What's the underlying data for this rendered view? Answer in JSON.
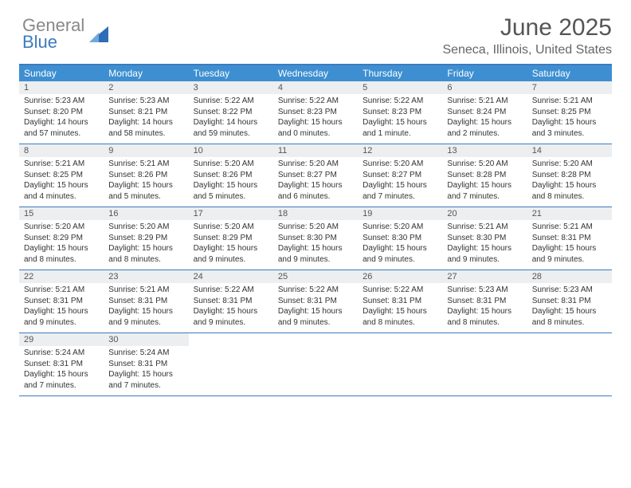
{
  "logo": {
    "text_gray": "General",
    "text_blue": "Blue",
    "shape_color": "#2d6db8"
  },
  "header": {
    "title": "June 2025",
    "subtitle": "Seneca, Illinois, United States"
  },
  "colors": {
    "header_bg": "#3d8fd1",
    "border": "#3d7bbf",
    "daynum_bg": "#eceef0",
    "text": "#333333"
  },
  "weekdays": [
    "Sunday",
    "Monday",
    "Tuesday",
    "Wednesday",
    "Thursday",
    "Friday",
    "Saturday"
  ],
  "weeks": [
    [
      {
        "n": "1",
        "sr": "Sunrise: 5:23 AM",
        "ss": "Sunset: 8:20 PM",
        "dl": "Daylight: 14 hours and 57 minutes."
      },
      {
        "n": "2",
        "sr": "Sunrise: 5:23 AM",
        "ss": "Sunset: 8:21 PM",
        "dl": "Daylight: 14 hours and 58 minutes."
      },
      {
        "n": "3",
        "sr": "Sunrise: 5:22 AM",
        "ss": "Sunset: 8:22 PM",
        "dl": "Daylight: 14 hours and 59 minutes."
      },
      {
        "n": "4",
        "sr": "Sunrise: 5:22 AM",
        "ss": "Sunset: 8:23 PM",
        "dl": "Daylight: 15 hours and 0 minutes."
      },
      {
        "n": "5",
        "sr": "Sunrise: 5:22 AM",
        "ss": "Sunset: 8:23 PM",
        "dl": "Daylight: 15 hours and 1 minute."
      },
      {
        "n": "6",
        "sr": "Sunrise: 5:21 AM",
        "ss": "Sunset: 8:24 PM",
        "dl": "Daylight: 15 hours and 2 minutes."
      },
      {
        "n": "7",
        "sr": "Sunrise: 5:21 AM",
        "ss": "Sunset: 8:25 PM",
        "dl": "Daylight: 15 hours and 3 minutes."
      }
    ],
    [
      {
        "n": "8",
        "sr": "Sunrise: 5:21 AM",
        "ss": "Sunset: 8:25 PM",
        "dl": "Daylight: 15 hours and 4 minutes."
      },
      {
        "n": "9",
        "sr": "Sunrise: 5:21 AM",
        "ss": "Sunset: 8:26 PM",
        "dl": "Daylight: 15 hours and 5 minutes."
      },
      {
        "n": "10",
        "sr": "Sunrise: 5:20 AM",
        "ss": "Sunset: 8:26 PM",
        "dl": "Daylight: 15 hours and 5 minutes."
      },
      {
        "n": "11",
        "sr": "Sunrise: 5:20 AM",
        "ss": "Sunset: 8:27 PM",
        "dl": "Daylight: 15 hours and 6 minutes."
      },
      {
        "n": "12",
        "sr": "Sunrise: 5:20 AM",
        "ss": "Sunset: 8:27 PM",
        "dl": "Daylight: 15 hours and 7 minutes."
      },
      {
        "n": "13",
        "sr": "Sunrise: 5:20 AM",
        "ss": "Sunset: 8:28 PM",
        "dl": "Daylight: 15 hours and 7 minutes."
      },
      {
        "n": "14",
        "sr": "Sunrise: 5:20 AM",
        "ss": "Sunset: 8:28 PM",
        "dl": "Daylight: 15 hours and 8 minutes."
      }
    ],
    [
      {
        "n": "15",
        "sr": "Sunrise: 5:20 AM",
        "ss": "Sunset: 8:29 PM",
        "dl": "Daylight: 15 hours and 8 minutes."
      },
      {
        "n": "16",
        "sr": "Sunrise: 5:20 AM",
        "ss": "Sunset: 8:29 PM",
        "dl": "Daylight: 15 hours and 8 minutes."
      },
      {
        "n": "17",
        "sr": "Sunrise: 5:20 AM",
        "ss": "Sunset: 8:29 PM",
        "dl": "Daylight: 15 hours and 9 minutes."
      },
      {
        "n": "18",
        "sr": "Sunrise: 5:20 AM",
        "ss": "Sunset: 8:30 PM",
        "dl": "Daylight: 15 hours and 9 minutes."
      },
      {
        "n": "19",
        "sr": "Sunrise: 5:20 AM",
        "ss": "Sunset: 8:30 PM",
        "dl": "Daylight: 15 hours and 9 minutes."
      },
      {
        "n": "20",
        "sr": "Sunrise: 5:21 AM",
        "ss": "Sunset: 8:30 PM",
        "dl": "Daylight: 15 hours and 9 minutes."
      },
      {
        "n": "21",
        "sr": "Sunrise: 5:21 AM",
        "ss": "Sunset: 8:31 PM",
        "dl": "Daylight: 15 hours and 9 minutes."
      }
    ],
    [
      {
        "n": "22",
        "sr": "Sunrise: 5:21 AM",
        "ss": "Sunset: 8:31 PM",
        "dl": "Daylight: 15 hours and 9 minutes."
      },
      {
        "n": "23",
        "sr": "Sunrise: 5:21 AM",
        "ss": "Sunset: 8:31 PM",
        "dl": "Daylight: 15 hours and 9 minutes."
      },
      {
        "n": "24",
        "sr": "Sunrise: 5:22 AM",
        "ss": "Sunset: 8:31 PM",
        "dl": "Daylight: 15 hours and 9 minutes."
      },
      {
        "n": "25",
        "sr": "Sunrise: 5:22 AM",
        "ss": "Sunset: 8:31 PM",
        "dl": "Daylight: 15 hours and 9 minutes."
      },
      {
        "n": "26",
        "sr": "Sunrise: 5:22 AM",
        "ss": "Sunset: 8:31 PM",
        "dl": "Daylight: 15 hours and 8 minutes."
      },
      {
        "n": "27",
        "sr": "Sunrise: 5:23 AM",
        "ss": "Sunset: 8:31 PM",
        "dl": "Daylight: 15 hours and 8 minutes."
      },
      {
        "n": "28",
        "sr": "Sunrise: 5:23 AM",
        "ss": "Sunset: 8:31 PM",
        "dl": "Daylight: 15 hours and 8 minutes."
      }
    ],
    [
      {
        "n": "29",
        "sr": "Sunrise: 5:24 AM",
        "ss": "Sunset: 8:31 PM",
        "dl": "Daylight: 15 hours and 7 minutes."
      },
      {
        "n": "30",
        "sr": "Sunrise: 5:24 AM",
        "ss": "Sunset: 8:31 PM",
        "dl": "Daylight: 15 hours and 7 minutes."
      },
      null,
      null,
      null,
      null,
      null
    ]
  ]
}
